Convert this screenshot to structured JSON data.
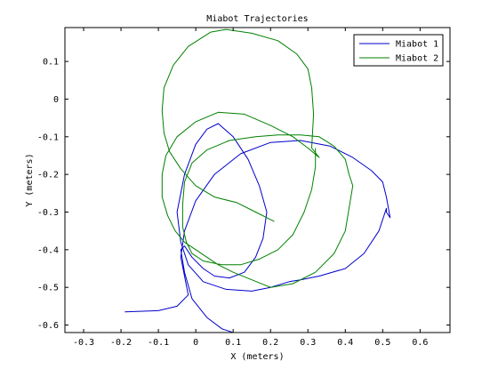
{
  "chart_data": {
    "type": "line",
    "title": "Miabot Trajectories",
    "xlabel": "X (meters)",
    "ylabel": "Y (meters)",
    "xlim": [
      -0.35,
      0.68
    ],
    "ylim": [
      -0.62,
      0.19
    ],
    "xticks": [
      -0.3,
      -0.2,
      -0.1,
      0,
      0.1,
      0.2,
      0.3,
      0.4,
      0.5,
      0.6
    ],
    "xtick_labels": [
      "-0.3",
      "-0.2",
      "-0.1",
      "0",
      "0.1",
      "0.2",
      "0.3",
      "0.4",
      "0.5",
      "0.6"
    ],
    "yticks": [
      0.1,
      0,
      -0.1,
      -0.2,
      -0.3,
      -0.4,
      -0.5,
      -0.6
    ],
    "ytick_labels": [
      "0.1",
      "0",
      "-0.1",
      "-0.2",
      "-0.3",
      "-0.4",
      "-0.5",
      "-0.6"
    ],
    "grid": false,
    "legend_position": "top-right",
    "series": [
      {
        "name": "Miabot 1",
        "color": "#0000cc",
        "x": [
          -0.19,
          -0.1,
          -0.05,
          -0.02,
          -0.03,
          -0.04,
          -0.03,
          0.0,
          0.05,
          0.12,
          0.2,
          0.28,
          0.36,
          0.42,
          0.47,
          0.5,
          0.51,
          0.52,
          0.51,
          0.51,
          0.49,
          0.45,
          0.4,
          0.33,
          0.28,
          0.25,
          0.2,
          0.15,
          0.08,
          0.02,
          -0.02,
          -0.04,
          -0.05,
          -0.03,
          0.0,
          0.03,
          0.06,
          0.1,
          0.14,
          0.17,
          0.19,
          0.18,
          0.16,
          0.13,
          0.09,
          0.05,
          0.02,
          -0.01,
          -0.03,
          -0.04,
          -0.03,
          -0.01,
          0.03,
          0.07,
          0.1
        ],
        "y": [
          -0.565,
          -0.562,
          -0.55,
          -0.52,
          -0.47,
          -0.42,
          -0.35,
          -0.27,
          -0.2,
          -0.145,
          -0.115,
          -0.11,
          -0.125,
          -0.155,
          -0.19,
          -0.22,
          -0.26,
          -0.315,
          -0.3,
          -0.29,
          -0.35,
          -0.41,
          -0.45,
          -0.47,
          -0.48,
          -0.485,
          -0.5,
          -0.51,
          -0.505,
          -0.485,
          -0.44,
          -0.38,
          -0.3,
          -0.2,
          -0.12,
          -0.08,
          -0.065,
          -0.1,
          -0.16,
          -0.23,
          -0.3,
          -0.37,
          -0.42,
          -0.46,
          -0.475,
          -0.47,
          -0.45,
          -0.42,
          -0.39,
          -0.4,
          -0.46,
          -0.53,
          -0.58,
          -0.61,
          -0.62
        ]
      },
      {
        "name": "Miabot 2",
        "color": "#008000",
        "x": [
          0.21,
          0.16,
          0.11,
          0.05,
          0.0,
          -0.04,
          -0.07,
          -0.085,
          -0.09,
          -0.085,
          -0.06,
          -0.02,
          0.04,
          0.08,
          0.15,
          0.22,
          0.27,
          0.3,
          0.31,
          0.315,
          0.31,
          0.33,
          0.3,
          0.26,
          0.2,
          0.13,
          0.06,
          0.0,
          -0.05,
          -0.08,
          -0.09,
          -0.09,
          -0.075,
          -0.055,
          -0.03,
          0.0,
          0.03,
          0.06,
          0.1,
          0.15,
          0.2,
          0.26,
          0.32,
          0.37,
          0.4,
          0.41,
          0.42,
          0.41,
          0.4,
          0.37,
          0.33,
          0.28,
          0.22,
          0.16,
          0.09,
          0.03,
          -0.01,
          -0.03,
          -0.035,
          -0.035,
          -0.025,
          -0.01,
          0.02,
          0.07,
          0.12,
          0.17,
          0.22,
          0.26,
          0.29,
          0.31,
          0.32,
          0.32
        ],
        "y": [
          -0.325,
          -0.3,
          -0.275,
          -0.26,
          -0.23,
          -0.185,
          -0.14,
          -0.09,
          -0.03,
          0.03,
          0.09,
          0.14,
          0.178,
          0.185,
          0.175,
          0.155,
          0.12,
          0.08,
          0.03,
          -0.04,
          -0.13,
          -0.155,
          -0.13,
          -0.1,
          -0.07,
          -0.04,
          -0.035,
          -0.06,
          -0.1,
          -0.15,
          -0.2,
          -0.26,
          -0.31,
          -0.35,
          -0.38,
          -0.4,
          -0.42,
          -0.44,
          -0.46,
          -0.48,
          -0.5,
          -0.49,
          -0.46,
          -0.41,
          -0.35,
          -0.29,
          -0.23,
          -0.2,
          -0.16,
          -0.125,
          -0.1,
          -0.095,
          -0.095,
          -0.1,
          -0.11,
          -0.135,
          -0.17,
          -0.22,
          -0.28,
          -0.34,
          -0.38,
          -0.41,
          -0.43,
          -0.44,
          -0.44,
          -0.425,
          -0.4,
          -0.36,
          -0.3,
          -0.24,
          -0.18,
          -0.13
        ]
      }
    ]
  }
}
